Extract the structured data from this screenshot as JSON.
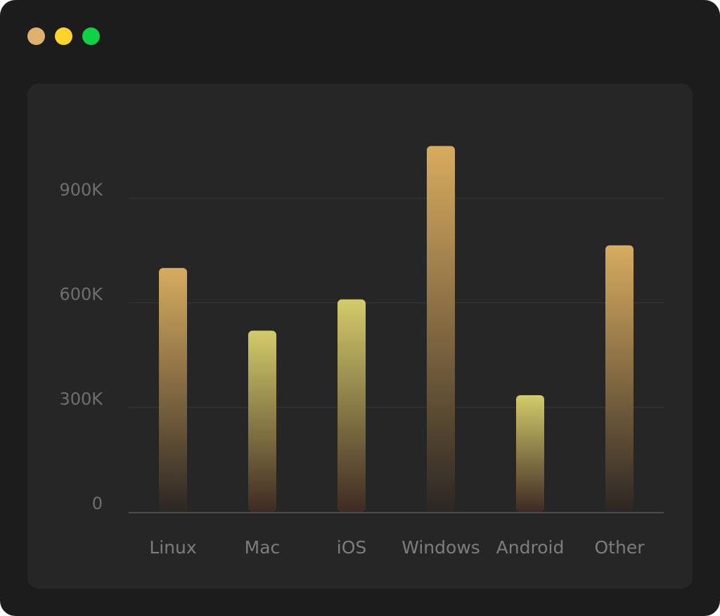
{
  "window": {
    "controls": [
      {
        "name": "close-dot",
        "color": "#e0b06e"
      },
      {
        "name": "minimize-dot",
        "color": "#fed42c"
      },
      {
        "name": "maximize-dot",
        "color": "#0ed145"
      }
    ]
  },
  "chart_data": {
    "type": "bar",
    "categories": [
      "Linux",
      "Mac",
      "iOS",
      "Windows",
      "Android",
      "Other"
    ],
    "values": [
      700000,
      520000,
      610000,
      1050000,
      335000,
      765000
    ],
    "ylim": [
      0,
      1100000
    ],
    "yticks": [
      0,
      300000,
      600000,
      900000
    ],
    "ytick_labels": [
      "0",
      "300K",
      "600K",
      "900K"
    ],
    "grid": true,
    "title": "",
    "xlabel": "",
    "ylabel": "",
    "bar_gradients": [
      {
        "top": "#d8ac60",
        "bottom": "#2c2623"
      },
      {
        "top": "#d3cb6b",
        "bottom": "#3e2a23"
      },
      {
        "top": "#d3cb6b",
        "bottom": "#3e2a23"
      },
      {
        "top": "#d8ac60",
        "bottom": "#2c2623"
      },
      {
        "top": "#d3cb6b",
        "bottom": "#3e2a23"
      },
      {
        "top": "#d8ac60",
        "bottom": "#2c2623"
      }
    ],
    "colors": {
      "grid": "#333333",
      "axis": "#4c4c4c",
      "tick_text": "#6f6f6f"
    }
  }
}
